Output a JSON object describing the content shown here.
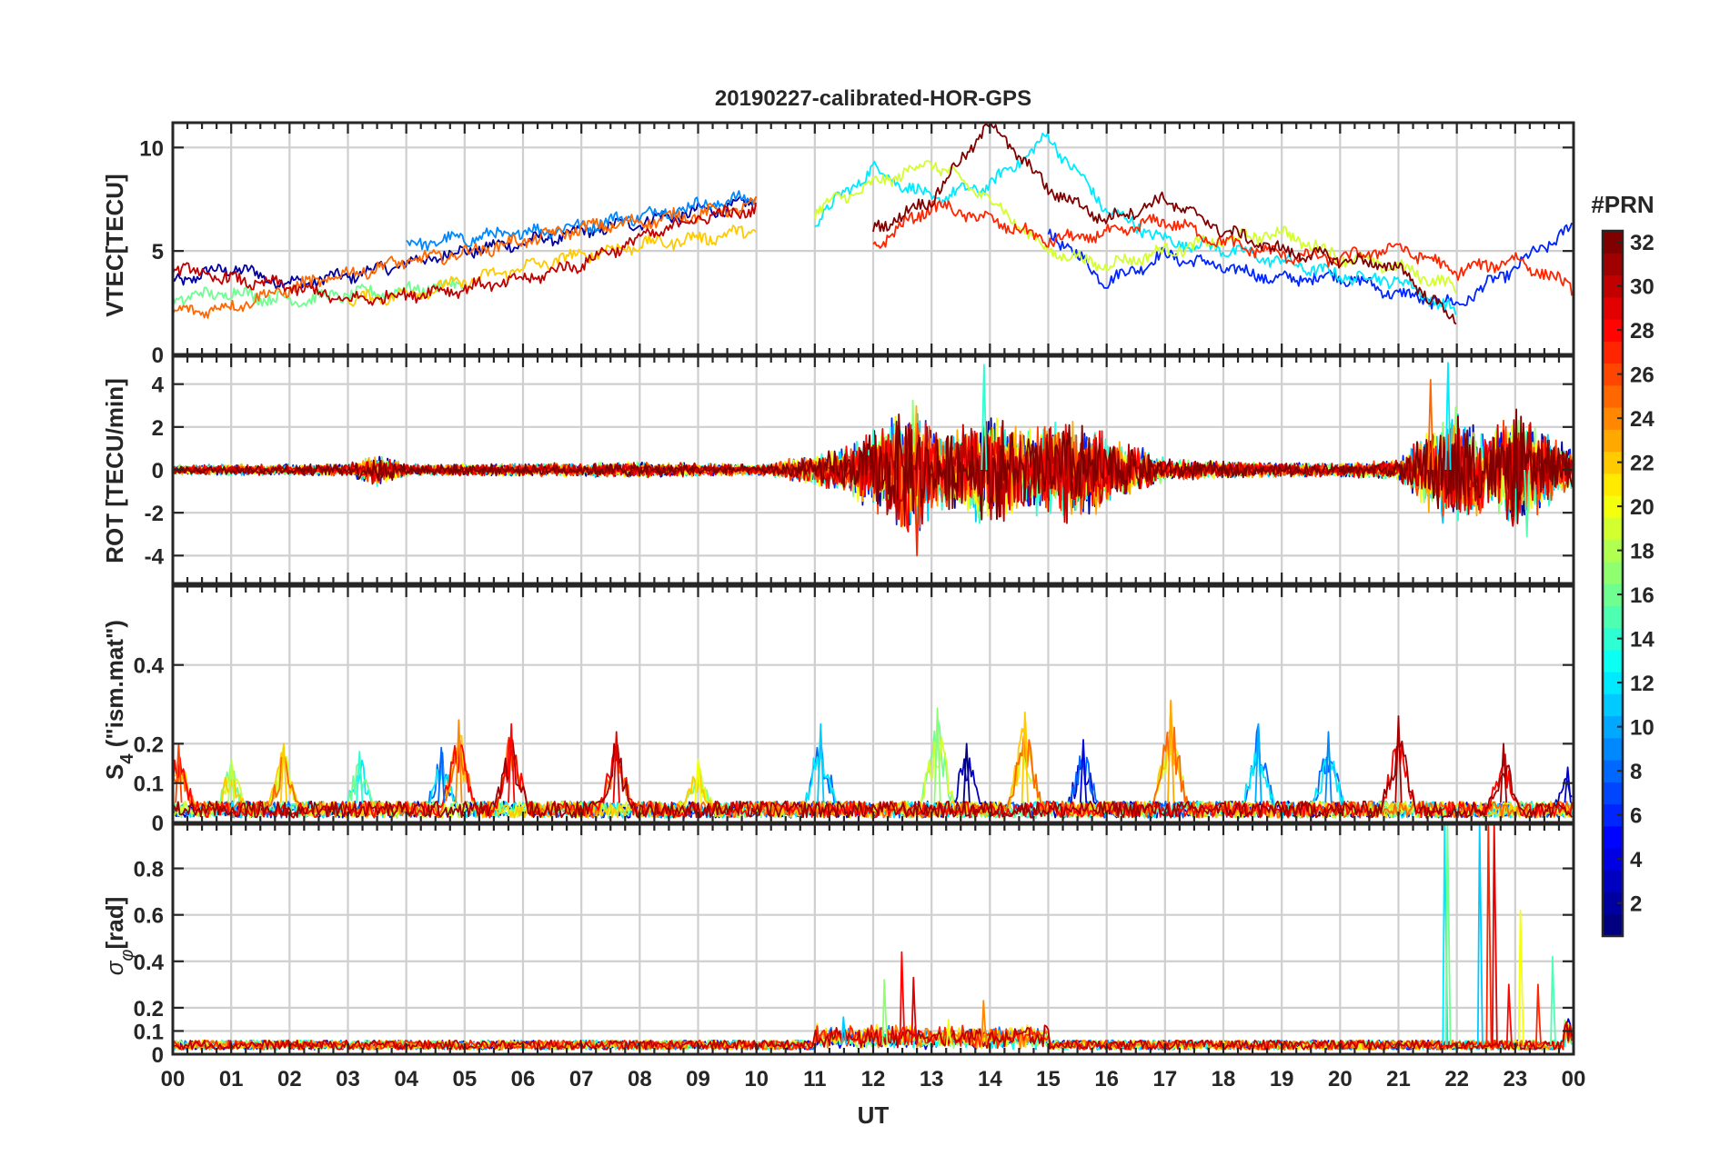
{
  "figure": {
    "title": "20190227-calibrated-HOR-GPS",
    "xlabel": "UT"
  },
  "colors": {
    "colormap": "jet",
    "axis": "#262626",
    "grid": "#cfcfcf",
    "background": "#ffffff"
  },
  "chart_data": [
    {
      "type": "line",
      "panel": "vtec",
      "ylabel": "VTEC[TECU]",
      "ylim": [
        0,
        11.2
      ],
      "yticks": [
        0,
        5,
        10
      ],
      "ytick_labels": [
        "0",
        "5",
        "10"
      ],
      "grid": true,
      "xlim": [
        0,
        24
      ],
      "xticks": [
        0,
        1,
        2,
        3,
        4,
        5,
        6,
        7,
        8,
        9,
        10,
        11,
        12,
        13,
        14,
        15,
        16,
        17,
        18,
        19,
        20,
        21,
        22,
        23,
        24
      ],
      "series": [
        {
          "name": "PRN 2",
          "prn": 2,
          "x": [
            0,
            1,
            2,
            3,
            4,
            5,
            6,
            7,
            8,
            9,
            10
          ],
          "values": [
            3.5,
            4.2,
            3.4,
            3.8,
            4.4,
            5.0,
            5.4,
            5.9,
            6.4,
            6.9,
            7.3
          ]
        },
        {
          "name": "PRN 6",
          "prn": 6,
          "x": [
            15,
            16,
            17,
            18,
            19,
            20,
            21,
            22,
            23,
            24
          ],
          "values": [
            6.0,
            3.5,
            4.8,
            4.2,
            3.6,
            3.8,
            2.9,
            2.4,
            4.2,
            6.2
          ]
        },
        {
          "name": "PRN 9",
          "prn": 9,
          "x": [
            4,
            5,
            6,
            7,
            8,
            9,
            10
          ],
          "values": [
            5.3,
            5.6,
            5.9,
            6.2,
            6.7,
            7.2,
            7.6
          ]
        },
        {
          "name": "PRN 12",
          "prn": 12,
          "x": [
            11,
            12,
            13,
            14,
            15,
            16,
            17,
            18,
            19,
            20,
            21,
            22
          ],
          "values": [
            6.5,
            9.0,
            7.5,
            8.2,
            10.5,
            7.0,
            5.5,
            5.1,
            4.5,
            3.8,
            3.6,
            2.0
          ]
        },
        {
          "name": "PRN 16",
          "prn": 16,
          "x": [
            0,
            1,
            2,
            3,
            4,
            5
          ],
          "values": [
            2.7,
            3.0,
            2.6,
            2.9,
            3.1,
            3.4
          ]
        },
        {
          "name": "PRN 19",
          "prn": 19,
          "x": [
            11,
            12,
            13,
            14,
            15,
            16,
            17,
            18,
            19,
            20,
            21,
            22
          ],
          "values": [
            7.0,
            8.2,
            9.3,
            7.5,
            5.0,
            4.3,
            5.0,
            5.5,
            5.9,
            4.7,
            4.2,
            3.2
          ]
        },
        {
          "name": "PRN 22",
          "prn": 22,
          "x": [
            3,
            4,
            5,
            6,
            7,
            8,
            9,
            10
          ],
          "values": [
            2.6,
            2.9,
            3.5,
            4.2,
            4.8,
            5.3,
            5.6,
            6.0
          ]
        },
        {
          "name": "PRN 25",
          "prn": 25,
          "x": [
            0,
            1,
            2,
            3,
            4,
            5,
            6,
            7,
            8,
            9,
            10
          ],
          "values": [
            2.0,
            2.3,
            3.2,
            3.9,
            4.5,
            4.9,
            5.5,
            6.1,
            6.4,
            6.8,
            7.2
          ]
        },
        {
          "name": "PRN 27",
          "prn": 27,
          "x": [
            12,
            13,
            14,
            15,
            16,
            17,
            18,
            19,
            20,
            21,
            22,
            23,
            24
          ],
          "values": [
            5.2,
            7.2,
            6.5,
            5.5,
            5.8,
            6.5,
            5.4,
            4.8,
            4.6,
            5.2,
            4.0,
            4.6,
            3.2
          ]
        },
        {
          "name": "PRN 30",
          "prn": 30,
          "x": [
            0,
            1,
            2,
            3,
            4,
            5,
            6,
            7,
            8,
            9,
            10
          ],
          "values": [
            4.2,
            3.6,
            3.3,
            2.6,
            2.9,
            3.2,
            3.6,
            4.4,
            5.6,
            6.6,
            7.0
          ]
        },
        {
          "name": "PRN 32",
          "prn": 32,
          "x": [
            12,
            13,
            14,
            15,
            16,
            17,
            18,
            19,
            20,
            21,
            22
          ],
          "values": [
            6.0,
            7.5,
            11.2,
            8.0,
            6.5,
            7.5,
            6.0,
            5.0,
            4.6,
            4.2,
            1.5
          ]
        }
      ]
    },
    {
      "type": "line",
      "panel": "rot",
      "ylabel": "ROT [TECU/min]",
      "ylim": [
        -5.3,
        5.3
      ],
      "yticks": [
        -4,
        -2,
        0,
        2,
        4
      ],
      "ytick_labels": [
        "-4",
        "-2",
        "0",
        "2",
        "4"
      ],
      "grid": true,
      "xlim": [
        0,
        24
      ],
      "envelope": {
        "x": [
          0,
          3,
          3.5,
          4,
          6,
          8,
          10,
          10.5,
          11,
          11.5,
          12,
          12.5,
          12.7,
          13,
          13.5,
          14,
          14.5,
          15,
          15.5,
          16,
          17,
          18,
          20,
          21,
          21.5,
          22,
          22.5,
          23,
          23.5,
          24
        ],
        "amplitude": [
          0.25,
          0.3,
          0.8,
          0.3,
          0.3,
          0.4,
          0.25,
          0.5,
          0.8,
          1.2,
          2.0,
          3.0,
          3.5,
          2.2,
          2.2,
          3.0,
          2.0,
          2.5,
          2.8,
          1.8,
          0.6,
          0.4,
          0.35,
          0.5,
          2.0,
          3.0,
          2.0,
          3.0,
          2.0,
          1.0
        ]
      },
      "peaks": [
        {
          "x": 12.75,
          "y": -4.0,
          "prn": 27
        },
        {
          "x": 13.9,
          "y": 4.9,
          "prn": 14
        },
        {
          "x": 21.55,
          "y": 4.2,
          "prn": 25
        },
        {
          "x": 21.85,
          "y": 5.0,
          "prn": 12
        },
        {
          "x": 23.2,
          "y": -3.1,
          "prn": 15
        }
      ]
    },
    {
      "type": "line",
      "panel": "s4",
      "ylabel": "S4 (\"ism.mat\")",
      "ylim": [
        0,
        0.6
      ],
      "yticks": [
        0,
        0.1,
        0.2,
        0.4
      ],
      "ytick_labels": [
        "0",
        "0.1",
        "0.2",
        "0.4"
      ],
      "grid": true,
      "xlim": [
        0,
        24
      ],
      "baseline": 0.03,
      "bursts": [
        {
          "x": 0.1,
          "peak": 0.2,
          "prn": 26
        },
        {
          "x": 1.0,
          "peak": 0.16,
          "prn": 18
        },
        {
          "x": 1.9,
          "peak": 0.2,
          "prn": 22
        },
        {
          "x": 3.2,
          "peak": 0.18,
          "prn": 14
        },
        {
          "x": 4.6,
          "peak": 0.19,
          "prn": 8
        },
        {
          "x": 4.9,
          "peak": 0.26,
          "prn": 24
        },
        {
          "x": 5.8,
          "peak": 0.25,
          "prn": 28
        },
        {
          "x": 7.6,
          "peak": 0.23,
          "prn": 29
        },
        {
          "x": 9.0,
          "peak": 0.16,
          "prn": 20
        },
        {
          "x": 11.1,
          "peak": 0.25,
          "prn": 11
        },
        {
          "x": 13.1,
          "peak": 0.29,
          "prn": 17
        },
        {
          "x": 13.6,
          "peak": 0.2,
          "prn": 1
        },
        {
          "x": 14.6,
          "peak": 0.28,
          "prn": 22
        },
        {
          "x": 15.6,
          "peak": 0.21,
          "prn": 4
        },
        {
          "x": 17.1,
          "peak": 0.31,
          "prn": 23
        },
        {
          "x": 18.6,
          "peak": 0.25,
          "prn": 10
        },
        {
          "x": 19.8,
          "peak": 0.23,
          "prn": 9
        },
        {
          "x": 21.0,
          "peak": 0.27,
          "prn": 31
        },
        {
          "x": 22.8,
          "peak": 0.2,
          "prn": 31
        },
        {
          "x": 23.9,
          "peak": 0.14,
          "prn": 3
        }
      ]
    },
    {
      "type": "line",
      "panel": "sigma_phi",
      "ylabel": "σφ[rad]",
      "ylim": [
        0,
        0.99
      ],
      "yticks": [
        0,
        0.1,
        0.2,
        0.4,
        0.6,
        0.8
      ],
      "ytick_labels": [
        "0",
        "0.1",
        "0.2",
        "0.4",
        "0.6",
        "0.8"
      ],
      "grid": true,
      "xlim": [
        0,
        24
      ],
      "xtick_labels": [
        "00",
        "01",
        "02",
        "03",
        "04",
        "05",
        "06",
        "07",
        "08",
        "09",
        "10",
        "11",
        "12",
        "13",
        "14",
        "15",
        "16",
        "17",
        "18",
        "19",
        "20",
        "21",
        "22",
        "23",
        "00"
      ],
      "baseline": 0.04,
      "spikes": [
        {
          "x": 11.5,
          "peak": 0.16,
          "prn": 11
        },
        {
          "x": 12.2,
          "peak": 0.32,
          "prn": 17
        },
        {
          "x": 12.5,
          "peak": 0.44,
          "prn": 28
        },
        {
          "x": 12.7,
          "peak": 0.33,
          "prn": 29
        },
        {
          "x": 13.3,
          "peak": 0.15,
          "prn": 20
        },
        {
          "x": 13.9,
          "peak": 0.23,
          "prn": 24
        },
        {
          "x": 21.8,
          "peak": 0.99,
          "prn": 12
        },
        {
          "x": 21.85,
          "peak": 0.99,
          "prn": 16
        },
        {
          "x": 22.4,
          "peak": 0.99,
          "prn": 11
        },
        {
          "x": 22.55,
          "peak": 0.99,
          "prn": 27
        },
        {
          "x": 22.65,
          "peak": 0.99,
          "prn": 29
        },
        {
          "x": 22.9,
          "peak": 0.3,
          "prn": 28
        },
        {
          "x": 23.1,
          "peak": 0.62,
          "prn": 20
        },
        {
          "x": 23.4,
          "peak": 0.3,
          "prn": 27
        },
        {
          "x": 23.65,
          "peak": 0.42,
          "prn": 15
        }
      ]
    },
    {
      "type": "heatmap",
      "panel": "colorbar",
      "label": "#PRN",
      "range": [
        1,
        32
      ],
      "ticks": [
        2,
        4,
        6,
        8,
        10,
        12,
        14,
        16,
        18,
        20,
        22,
        24,
        26,
        28,
        30,
        32
      ],
      "tick_labels": [
        "2",
        "4",
        "6",
        "8",
        "10",
        "12",
        "14",
        "16",
        "18",
        "20",
        "22",
        "24",
        "26",
        "28",
        "30",
        "32"
      ]
    }
  ]
}
